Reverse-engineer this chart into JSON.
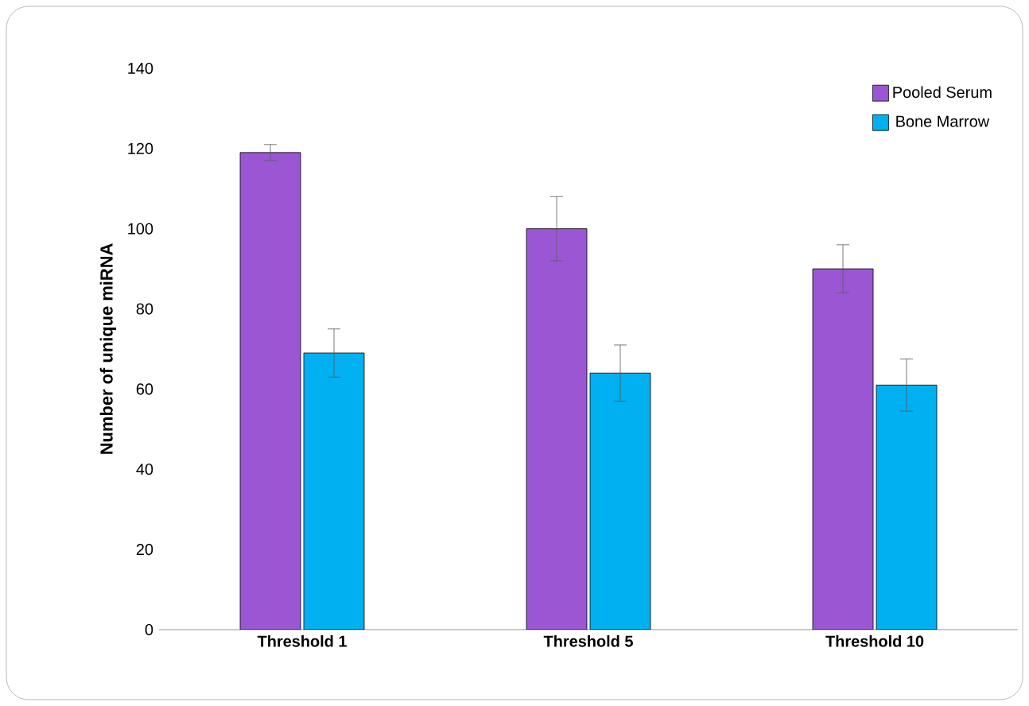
{
  "chart_data": {
    "type": "bar",
    "ylabel": "Number of unique miRNA",
    "categories": [
      "Threshold 1",
      "Threshold 5",
      "Threshold 10"
    ],
    "series": [
      {
        "name": "Pooled Serum",
        "color": "#9b57d3",
        "values": [
          119,
          100,
          90
        ],
        "errors": [
          2,
          8,
          6
        ]
      },
      {
        "name": "Bone Marrow",
        "color": "#00b0f0",
        "values": [
          69,
          64,
          61
        ],
        "errors": [
          6,
          7,
          6.5
        ]
      }
    ],
    "ylim": [
      0,
      140
    ],
    "yticks": [
      0,
      20,
      40,
      60,
      80,
      100,
      120,
      140
    ],
    "grid": false,
    "legend": "top right"
  }
}
